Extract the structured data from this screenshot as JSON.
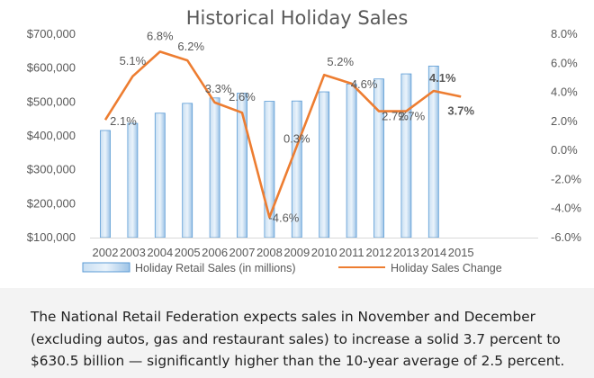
{
  "chart_data": {
    "type": "bar+line",
    "title": "Historical Holiday Sales",
    "categories": [
      "2002",
      "2003",
      "2004",
      "2005",
      "2006",
      "2007",
      "2008",
      "2009",
      "2010",
      "2011",
      "2012",
      "2013",
      "2014",
      "2015"
    ],
    "bar_series": {
      "name": "Holiday Retail Sales (in millions)",
      "values": [
        416000,
        437000,
        467000,
        496000,
        512000,
        526000,
        502000,
        503000,
        530000,
        553000,
        568000,
        583000,
        606000,
        null
      ],
      "color": "#9dc3e6"
    },
    "line_series": {
      "name": "Holiday Sales Change",
      "values": [
        2.1,
        5.1,
        6.8,
        6.2,
        3.3,
        2.6,
        -4.6,
        0.3,
        5.2,
        4.6,
        2.7,
        2.7,
        4.1,
        3.7
      ],
      "labels": [
        "2.1%",
        "5.1%",
        "6.8%",
        "6.2%",
        "3.3%",
        "2.6%",
        "-4.6%",
        "0.3%",
        "5.2%",
        "4.6%",
        "2.7%",
        "2.7%",
        "4.1%",
        "3.7%"
      ],
      "color": "#ed7d31",
      "highlight_color": "#ff0000"
    },
    "y_left": {
      "range": [
        100000,
        700000
      ],
      "ticks": [
        "$100,000",
        "$200,000",
        "$300,000",
        "$400,000",
        "$500,000",
        "$600,000",
        "$700,000"
      ]
    },
    "y_right": {
      "range": [
        -6.0,
        8.0
      ],
      "ticks": [
        "-6.0%",
        "-4.0%",
        "-2.0%",
        "0.0%",
        "2.0%",
        "4.0%",
        "6.0%",
        "8.0%"
      ]
    },
    "grid": false,
    "legend_position": "bottom"
  },
  "caption": {
    "text": "The National Retail Federation expects sales in November and December (excluding autos, gas and restaurant sales) to increase a solid 3.7 percent to $630.5 billion — significantly higher than the 10-year average of 2.5 percent."
  }
}
